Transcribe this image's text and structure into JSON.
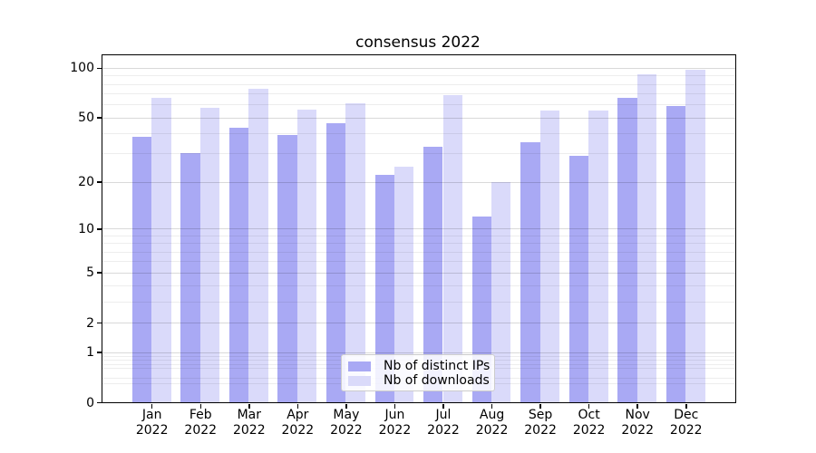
{
  "chart_data": {
    "type": "bar",
    "title": "consensus 2022",
    "categories": [
      "Jan 2022",
      "Feb 2022",
      "Mar 2022",
      "Apr 2022",
      "May 2022",
      "Jun 2022",
      "Jul 2022",
      "Aug 2022",
      "Sep 2022",
      "Oct 2022",
      "Nov 2022",
      "Dec 2022"
    ],
    "series": [
      {
        "name": "Nb of distinct IPs",
        "color": "#a9a9f4",
        "values": [
          38,
          30,
          43,
          39,
          46,
          22,
          33,
          12,
          35,
          29,
          66,
          59
        ]
      },
      {
        "name": "Nb of downloads",
        "color": "#dadafa",
        "values": [
          66,
          57,
          75,
          56,
          61,
          25,
          68,
          20,
          55,
          55,
          91,
          97
        ]
      }
    ],
    "xlabel": "",
    "ylabel": "",
    "yscale": "log1p",
    "ylim": [
      0,
      119.3
    ],
    "yticks_major": [
      0,
      1,
      2,
      5,
      10,
      20,
      50,
      100
    ],
    "yticks_minor": [
      0.3,
      0.4,
      0.6,
      0.7,
      0.8,
      0.9,
      3,
      4,
      6,
      7,
      8,
      9,
      30,
      40,
      60,
      70,
      80,
      90
    ],
    "grid": "on",
    "legend_position": "lower center"
  },
  "colors": {
    "background": "#ffffff",
    "axis": "#000000",
    "bar_dark": "#a9a9f4",
    "bar_light": "#dadafa",
    "grid_major": "rgba(0,0,0,0.15)",
    "grid_minor": "rgba(0,0,0,0.07)",
    "legend_border": "#cccccc"
  }
}
